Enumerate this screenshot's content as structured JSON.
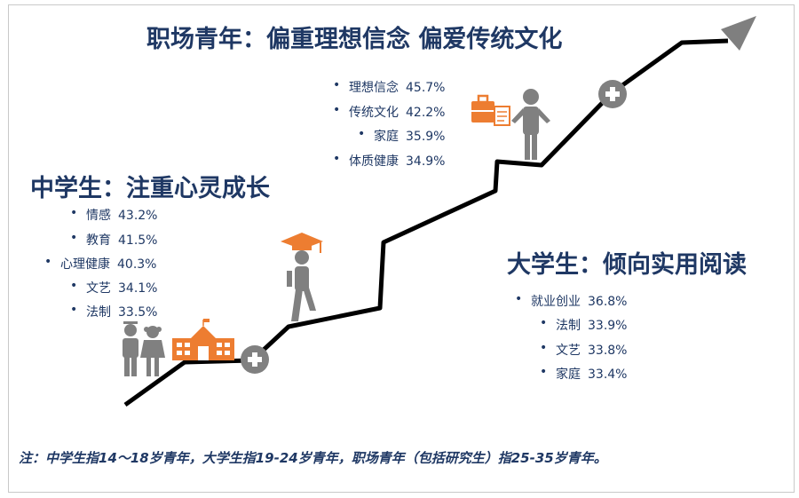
{
  "headings": {
    "work": "职场青年：偏重理想信念 偏爱传统文化",
    "middle": "中学生：注重心灵成长",
    "university": "大学生：倾向实用阅读"
  },
  "work_items": [
    {
      "label": "理想信念",
      "value": "45.7%"
    },
    {
      "label": "传统文化",
      "value": "42.2%"
    },
    {
      "label": "家庭",
      "value": "35.9%"
    },
    {
      "label": "体质健康",
      "value": "34.9%"
    }
  ],
  "middle_items": [
    {
      "label": "情感",
      "value": "43.2%"
    },
    {
      "label": "教育",
      "value": "41.5%"
    },
    {
      "label": "心理健康",
      "value": "40.3%"
    },
    {
      "label": "文艺",
      "value": "34.1%"
    },
    {
      "label": "法制",
      "value": "33.5%"
    }
  ],
  "university_items": [
    {
      "label": "就业创业",
      "value": "36.8%"
    },
    {
      "label": "法制",
      "value": "33.9%"
    },
    {
      "label": "文艺",
      "value": "33.8%"
    },
    {
      "label": "家庭",
      "value": "33.4%"
    }
  ],
  "note": "注：中学生指14～18岁青年，大学生指19-24岁青年，职场青年（包括研究生）指25-35岁青年。",
  "colors": {
    "title": "#1f3864",
    "orange": "#ed7d31",
    "gray": "#7f7f7f",
    "line": "#000000"
  },
  "icons": [
    "students-icon",
    "school-building-icon",
    "plus-icon",
    "graduate-walking-icon",
    "briefcase-icon",
    "document-icon",
    "person-icon",
    "arrow-head-icon"
  ]
}
